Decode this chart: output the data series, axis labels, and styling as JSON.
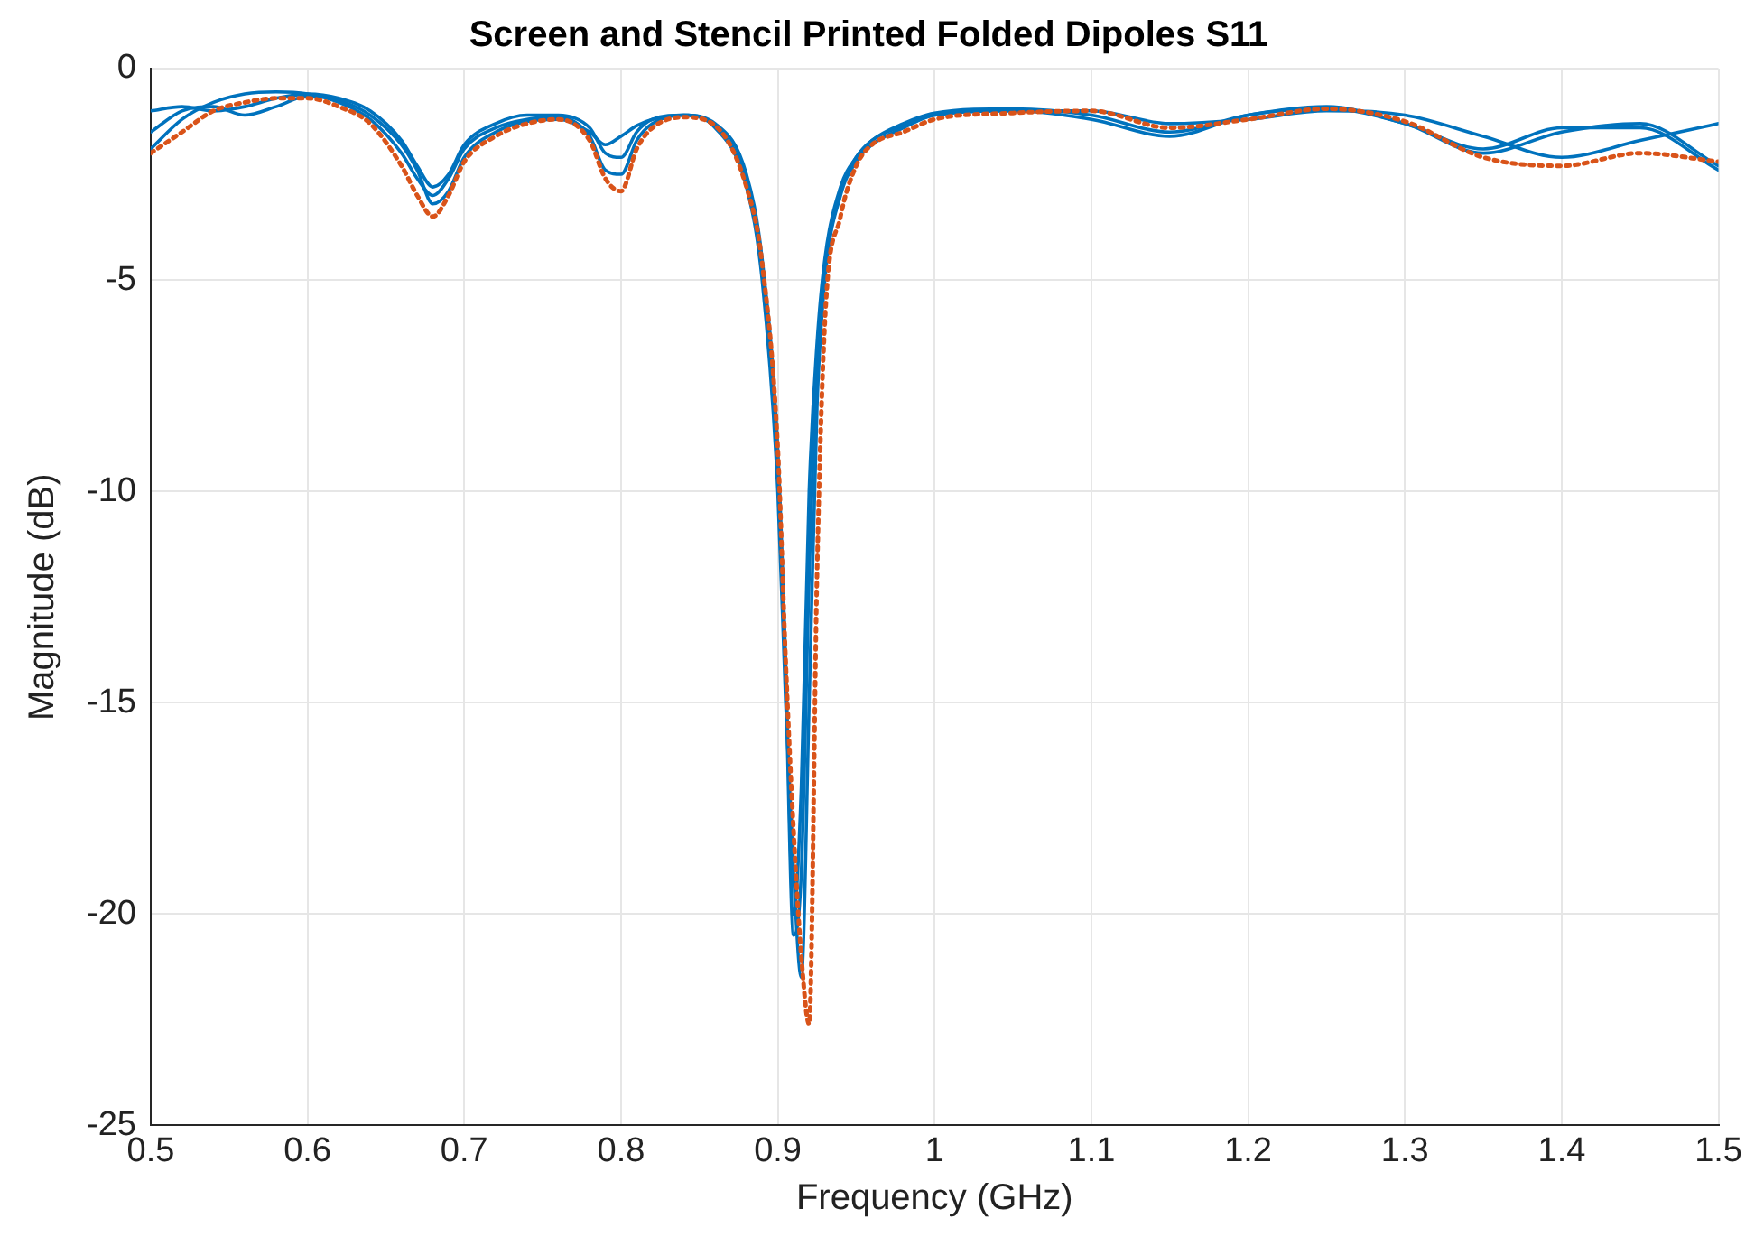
{
  "chart_data": {
    "type": "line",
    "title": "Screen and Stencil Printed Folded Dipoles S11",
    "xlabel": "Frequency (GHz)",
    "ylabel": "Magnitude (dB)",
    "x": [
      0.5,
      0.52,
      0.54,
      0.56,
      0.58,
      0.6,
      0.62,
      0.64,
      0.66,
      0.67,
      0.68,
      0.69,
      0.7,
      0.72,
      0.74,
      0.76,
      0.78,
      0.79,
      0.8,
      0.81,
      0.82,
      0.84,
      0.86,
      0.88,
      0.89,
      0.9,
      0.905,
      0.91,
      0.915,
      0.92,
      0.925,
      0.93,
      0.94,
      0.95,
      0.96,
      0.98,
      1.0,
      1.05,
      1.1,
      1.15,
      1.2,
      1.25,
      1.3,
      1.35,
      1.4,
      1.45,
      1.5
    ],
    "series": [
      {
        "color": "#0072bd",
        "line_style": "solid",
        "values": [
          -1.9,
          -1.2,
          -0.8,
          -0.6,
          -0.55,
          -0.6,
          -0.8,
          -1.2,
          -2.0,
          -2.6,
          -3.0,
          -2.6,
          -1.9,
          -1.4,
          -1.2,
          -1.15,
          -1.6,
          -2.4,
          -2.5,
          -1.7,
          -1.3,
          -1.1,
          -1.3,
          -2.5,
          -4.5,
          -9,
          -14,
          -20,
          -17,
          -10,
          -6.5,
          -4.5,
          -2.8,
          -2.1,
          -1.7,
          -1.3,
          -1.05,
          -0.95,
          -1.1,
          -1.5,
          -1.1,
          -0.9,
          -1.3,
          -1.9,
          -1.4,
          -1.4,
          -2.4
        ]
      },
      {
        "color": "#0072bd",
        "line_style": "solid",
        "values": [
          -1.0,
          -0.9,
          -1.0,
          -0.9,
          -0.7,
          -0.6,
          -0.7,
          -1.0,
          -1.7,
          -2.3,
          -2.8,
          -2.5,
          -1.8,
          -1.3,
          -1.1,
          -1.1,
          -1.4,
          -2.0,
          -2.1,
          -1.5,
          -1.2,
          -1.1,
          -1.4,
          -2.8,
          -5,
          -10,
          -15,
          -19,
          -21.5,
          -15,
          -8,
          -5,
          -3,
          -2.2,
          -1.8,
          -1.4,
          -1.1,
          -1.0,
          -1.0,
          -1.3,
          -1.2,
          -1.0,
          -1.1,
          -1.6,
          -2.1,
          -1.7,
          -1.3
        ]
      },
      {
        "color": "#0072bd",
        "line_style": "solid",
        "values": [
          -1.5,
          -1.0,
          -0.9,
          -1.1,
          -0.9,
          -0.65,
          -0.75,
          -1.1,
          -1.8,
          -2.4,
          -3.2,
          -2.9,
          -2.1,
          -1.5,
          -1.25,
          -1.2,
          -1.5,
          -1.8,
          -1.6,
          -1.35,
          -1.2,
          -1.1,
          -1.35,
          -2.7,
          -4.8,
          -9.5,
          -14.5,
          -20.5,
          -19,
          -12,
          -7,
          -4.8,
          -2.9,
          -2.1,
          -1.7,
          -1.35,
          -1.1,
          -1.0,
          -1.2,
          -1.6,
          -1.1,
          -0.95,
          -1.3,
          -2.0,
          -1.5,
          -1.3,
          -2.3
        ]
      },
      {
        "color": "#d95319",
        "line_style": "dotted",
        "values": [
          -2.0,
          -1.5,
          -1.0,
          -0.8,
          -0.7,
          -0.7,
          -0.9,
          -1.3,
          -2.3,
          -3.0,
          -3.5,
          -3.0,
          -2.2,
          -1.6,
          -1.3,
          -1.2,
          -1.7,
          -2.6,
          -2.9,
          -1.9,
          -1.4,
          -1.15,
          -1.35,
          -2.8,
          -4.6,
          -9,
          -14,
          -18,
          -21,
          -22.6,
          -12,
          -6,
          -3.5,
          -2.3,
          -1.8,
          -1.5,
          -1.2,
          -1.05,
          -1.0,
          -1.4,
          -1.2,
          -0.95,
          -1.25,
          -2.1,
          -2.3,
          -2.0,
          -2.2
        ]
      }
    ],
    "xlim": [
      0.5,
      1.5
    ],
    "xticks": [
      0.5,
      0.6,
      0.7,
      0.8,
      0.9,
      1,
      1.1,
      1.2,
      1.3,
      1.4,
      1.5
    ],
    "ylim": [
      -25,
      0
    ],
    "yticks": [
      -25,
      -20,
      -15,
      -10,
      -5,
      0
    ],
    "grid": true,
    "legend": false,
    "marker": "none"
  }
}
